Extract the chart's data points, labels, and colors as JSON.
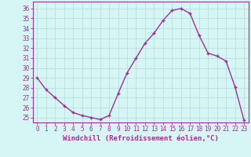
{
  "x": [
    0,
    1,
    2,
    3,
    4,
    5,
    6,
    7,
    8,
    9,
    10,
    11,
    12,
    13,
    14,
    15,
    16,
    17,
    18,
    19,
    20,
    21,
    22,
    23
  ],
  "y": [
    29.0,
    27.8,
    27.0,
    26.2,
    25.5,
    25.2,
    25.0,
    24.8,
    25.2,
    27.4,
    29.5,
    31.0,
    32.5,
    33.5,
    34.8,
    35.8,
    36.0,
    35.5,
    33.3,
    31.5,
    31.2,
    30.7,
    28.1,
    24.7
  ],
  "line_color": "#993399",
  "marker": "+",
  "marker_size": 3,
  "bg_color": "#d6f5f5",
  "grid_color": "#b8dada",
  "xlabel": "Windchill (Refroidissement éolien,°C)",
  "xlim_min": -0.5,
  "xlim_max": 23.5,
  "ylim_min": 24.5,
  "ylim_max": 36.7,
  "yticks": [
    25,
    26,
    27,
    28,
    29,
    30,
    31,
    32,
    33,
    34,
    35,
    36
  ],
  "xticks": [
    0,
    1,
    2,
    3,
    4,
    5,
    6,
    7,
    8,
    9,
    10,
    11,
    12,
    13,
    14,
    15,
    16,
    17,
    18,
    19,
    20,
    21,
    22,
    23
  ],
  "tick_label_fontsize": 5.5,
  "xlabel_fontsize": 6.5,
  "line_width": 1.0
}
